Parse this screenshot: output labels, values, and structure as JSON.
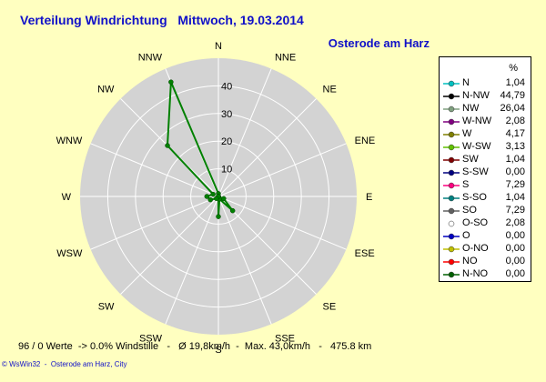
{
  "title": "Verteilung Windrichtung   Mittwoch, 19.03.2014",
  "subtitle": "Osterode am Harz",
  "legend_header": "%",
  "stats": "96 / 0 Werte  -> 0.0% Windstille   -   Ø 19,8km/h  -  Max. 43,0km/h   -   475.8 km",
  "footer": "© WsWin32  -  Osterode am Harz, City",
  "colors": {
    "background": "#ffffc0",
    "plot_disc": "#d3d3d3",
    "grid": "#ffffff",
    "series_line": "#008000",
    "title": "#1010c8"
  },
  "chart_data": {
    "type": "radar",
    "title": "Verteilung Windrichtung   Mittwoch, 19.03.2014",
    "subtitle": "Osterode am Harz",
    "radial_ticks": [
      10,
      20,
      30,
      40
    ],
    "radial_range": [
      0,
      50
    ],
    "directions": [
      "N",
      "NNE",
      "NE",
      "ENE",
      "E",
      "ESE",
      "SE",
      "SSE",
      "S",
      "SSW",
      "SW",
      "WSW",
      "W",
      "WNW",
      "NW",
      "NNW"
    ],
    "legend_unit": "%",
    "legend": [
      {
        "label": "N",
        "value": "1,04",
        "color": "#00c0c0"
      },
      {
        "label": "N-NW",
        "value": "44,79",
        "color": "#000000"
      },
      {
        "label": "NW",
        "value": "26,04",
        "color": "#80a080"
      },
      {
        "label": "W-NW",
        "value": "2,08",
        "color": "#800080"
      },
      {
        "label": "W",
        "value": "4,17",
        "color": "#808000"
      },
      {
        "label": "W-SW",
        "value": "3,13",
        "color": "#60c000"
      },
      {
        "label": "SW",
        "value": "1,04",
        "color": "#800000"
      },
      {
        "label": "S-SW",
        "value": "0,00",
        "color": "#000080"
      },
      {
        "label": "S",
        "value": "7,29",
        "color": "#ff0080"
      },
      {
        "label": "S-SO",
        "value": "1,04",
        "color": "#008080"
      },
      {
        "label": "SO",
        "value": "7,29",
        "color": "#606060"
      },
      {
        "label": "O-SO",
        "value": "2,08",
        "color": "#ffffff"
      },
      {
        "label": "O",
        "value": "0,00",
        "color": "#0000c0"
      },
      {
        "label": "O-NO",
        "value": "0,00",
        "color": "#c0c000"
      },
      {
        "label": "NO",
        "value": "0,00",
        "color": "#ff0000"
      },
      {
        "label": "N-NO",
        "value": "0,00",
        "color": "#006000"
      }
    ],
    "series": [
      {
        "values": [
          1.04,
          0,
          0,
          0,
          0,
          2.08,
          7.29,
          1.04,
          7.29,
          0,
          1.04,
          3.13,
          4.17,
          2.08,
          26.04,
          44.79
        ]
      }
    ]
  }
}
